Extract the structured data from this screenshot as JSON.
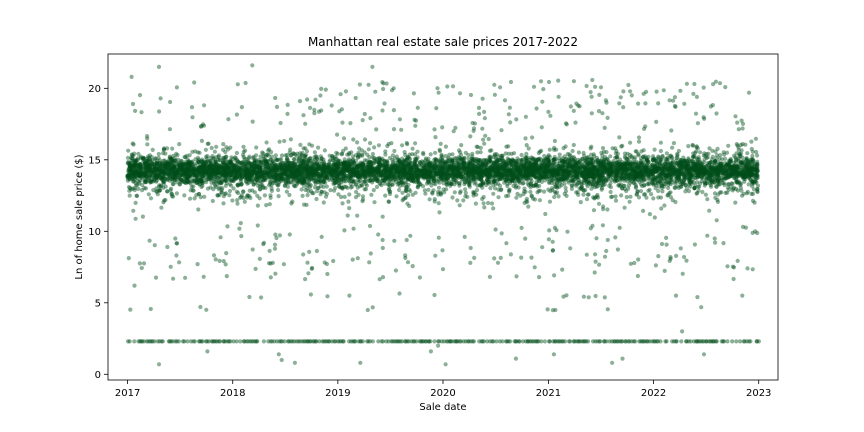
{
  "chart_data": {
    "type": "scatter",
    "title": "Manhattan real estate sale prices 2017-2022",
    "xlabel": "Sale date",
    "ylabel": "Ln of home sale price ($)",
    "xlim": [
      "2016-10-25",
      "2023-03-09"
    ],
    "ylim": [
      -0.4,
      22.4
    ],
    "x_ticks": [
      "2017",
      "2018",
      "2019",
      "2020",
      "2021",
      "2022",
      "2023"
    ],
    "y_ticks": [
      "0",
      "5",
      "10",
      "15",
      "20"
    ],
    "grid": false,
    "legend": "none",
    "point_color": "#004d1a",
    "point_alpha": 0.45,
    "series": [
      {
        "x_range": [
          "2017-01-01",
          "2022-12-31"
        ],
        "dense_band": {
          "center": 14.0,
          "core_range": [
            12.5,
            16.0
          ],
          "spread_range": [
            9.0,
            19.0
          ]
        },
        "low_value_band": {
          "y": 2.3,
          "density": "regular"
        },
        "notable_points": [
          {
            "x": "2017-01-15",
            "y": 20.8
          },
          {
            "x": "2017-04-20",
            "y": 21.5
          },
          {
            "x": "2018-03-10",
            "y": 21.6
          },
          {
            "x": "2019-05-01",
            "y": 21.5
          },
          {
            "x": "2017-01-25",
            "y": 6.2
          },
          {
            "x": "2017-04-20",
            "y": 0.7
          },
          {
            "x": "2017-10-05",
            "y": 1.6
          },
          {
            "x": "2018-05-20",
            "y": 7.8
          },
          {
            "x": "2018-06-10",
            "y": 1.4
          },
          {
            "x": "2018-06-20",
            "y": 1.0
          },
          {
            "x": "2018-08-05",
            "y": 0.8
          },
          {
            "x": "2019-02-10",
            "y": 5.5
          },
          {
            "x": "2019-03-20",
            "y": 0.8
          },
          {
            "x": "2019-11-20",
            "y": 1.6
          },
          {
            "x": "2019-12-15",
            "y": 2.0
          },
          {
            "x": "2020-01-10",
            "y": 0.7
          },
          {
            "x": "2020-07-10",
            "y": 7.8
          },
          {
            "x": "2020-09-10",
            "y": 1.1
          },
          {
            "x": "2021-01-20",
            "y": 1.4
          },
          {
            "x": "2021-08-10",
            "y": 0.8
          },
          {
            "x": "2021-09-15",
            "y": 1.1
          },
          {
            "x": "2022-03-20",
            "y": 5.5
          },
          {
            "x": "2022-04-10",
            "y": 3.0
          },
          {
            "x": "2022-06-25",
            "y": 1.4
          },
          {
            "x": "2022-11-05",
            "y": 5.5
          }
        ]
      }
    ]
  }
}
